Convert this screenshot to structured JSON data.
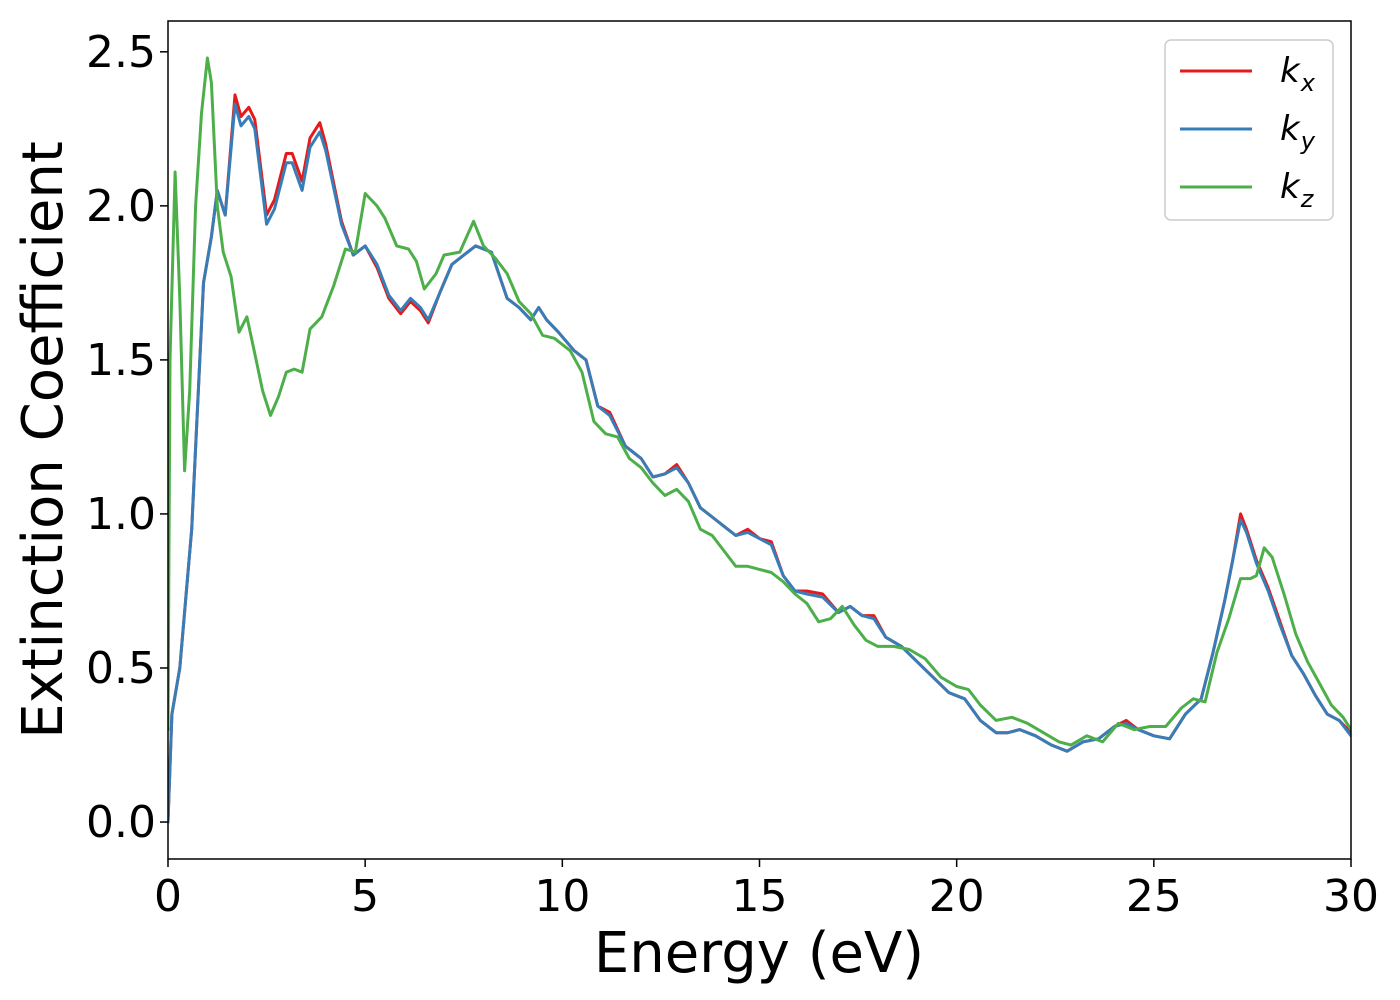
{
  "chart_data": {
    "type": "line",
    "title": "",
    "xlabel": "Energy (eV)",
    "ylabel": "Extinction Coefficient",
    "xlim": [
      0,
      30
    ],
    "ylim": [
      -0.12,
      2.6
    ],
    "x_ticks": [
      0,
      5,
      10,
      15,
      20,
      25,
      30
    ],
    "x_tick_labels": [
      "0",
      "5",
      "10",
      "15",
      "20",
      "25",
      "30"
    ],
    "y_ticks": [
      0.0,
      0.5,
      1.0,
      1.5,
      2.0,
      2.5
    ],
    "y_tick_labels": [
      "0.0",
      "0.5",
      "1.0",
      "1.5",
      "2.0",
      "2.5"
    ],
    "grid": false,
    "legend_position": "top-right",
    "series": [
      {
        "name": "k_x",
        "label_base": "k",
        "label_sub": "x",
        "color": "#e41a1c",
        "points": [
          [
            0,
            0
          ],
          [
            0.1,
            0.35
          ],
          [
            0.3,
            0.5
          ],
          [
            0.6,
            0.95
          ],
          [
            0.9,
            1.75
          ],
          [
            1.1,
            1.9
          ],
          [
            1.25,
            2.05
          ],
          [
            1.45,
            1.97
          ],
          [
            1.7,
            2.36
          ],
          [
            1.85,
            2.29
          ],
          [
            2.05,
            2.32
          ],
          [
            2.2,
            2.28
          ],
          [
            2.5,
            1.97
          ],
          [
            2.7,
            2.02
          ],
          [
            3.0,
            2.17
          ],
          [
            3.15,
            2.17
          ],
          [
            3.4,
            2.08
          ],
          [
            3.6,
            2.22
          ],
          [
            3.85,
            2.27
          ],
          [
            4.0,
            2.2
          ],
          [
            4.4,
            1.95
          ],
          [
            4.7,
            1.84
          ],
          [
            5.0,
            1.87
          ],
          [
            5.3,
            1.8
          ],
          [
            5.6,
            1.7
          ],
          [
            5.9,
            1.65
          ],
          [
            6.15,
            1.69
          ],
          [
            6.4,
            1.66
          ],
          [
            6.6,
            1.62
          ],
          [
            6.9,
            1.72
          ],
          [
            7.2,
            1.81
          ],
          [
            7.5,
            1.84
          ],
          [
            7.8,
            1.87
          ],
          [
            8.2,
            1.85
          ],
          [
            8.6,
            1.7
          ],
          [
            8.9,
            1.67
          ],
          [
            9.2,
            1.63
          ],
          [
            9.4,
            1.67
          ],
          [
            9.6,
            1.63
          ],
          [
            9.9,
            1.59
          ],
          [
            10.3,
            1.53
          ],
          [
            10.6,
            1.5
          ],
          [
            10.9,
            1.35
          ],
          [
            11.2,
            1.33
          ],
          [
            11.6,
            1.22
          ],
          [
            12.0,
            1.18
          ],
          [
            12.3,
            1.12
          ],
          [
            12.6,
            1.13
          ],
          [
            12.9,
            1.16
          ],
          [
            13.2,
            1.1
          ],
          [
            13.5,
            1.02
          ],
          [
            13.8,
            0.99
          ],
          [
            14.1,
            0.96
          ],
          [
            14.4,
            0.93
          ],
          [
            14.7,
            0.95
          ],
          [
            15.0,
            0.92
          ],
          [
            15.3,
            0.91
          ],
          [
            15.6,
            0.8
          ],
          [
            15.9,
            0.75
          ],
          [
            16.2,
            0.75
          ],
          [
            16.6,
            0.74
          ],
          [
            17.0,
            0.68
          ],
          [
            17.3,
            0.7
          ],
          [
            17.6,
            0.67
          ],
          [
            17.9,
            0.67
          ],
          [
            18.2,
            0.6
          ],
          [
            18.6,
            0.57
          ],
          [
            19.0,
            0.52
          ],
          [
            19.4,
            0.47
          ],
          [
            19.8,
            0.42
          ],
          [
            20.2,
            0.4
          ],
          [
            20.6,
            0.33
          ],
          [
            21.0,
            0.29
          ],
          [
            21.3,
            0.29
          ],
          [
            21.6,
            0.3
          ],
          [
            22.0,
            0.28
          ],
          [
            22.4,
            0.25
          ],
          [
            22.8,
            0.23
          ],
          [
            23.2,
            0.26
          ],
          [
            23.6,
            0.27
          ],
          [
            24.0,
            0.31
          ],
          [
            24.3,
            0.33
          ],
          [
            24.6,
            0.3
          ],
          [
            25.0,
            0.28
          ],
          [
            25.4,
            0.27
          ],
          [
            25.8,
            0.35
          ],
          [
            26.2,
            0.4
          ],
          [
            26.5,
            0.55
          ],
          [
            26.8,
            0.72
          ],
          [
            27.0,
            0.85
          ],
          [
            27.2,
            1.0
          ],
          [
            27.35,
            0.95
          ],
          [
            27.6,
            0.85
          ],
          [
            27.9,
            0.76
          ],
          [
            28.2,
            0.65
          ],
          [
            28.5,
            0.54
          ],
          [
            28.8,
            0.48
          ],
          [
            29.1,
            0.41
          ],
          [
            29.4,
            0.35
          ],
          [
            29.7,
            0.33
          ],
          [
            30.0,
            0.29
          ]
        ]
      },
      {
        "name": "k_y",
        "label_base": "k",
        "label_sub": "y",
        "color": "#377eb8",
        "points": [
          [
            0,
            0
          ],
          [
            0.1,
            0.35
          ],
          [
            0.3,
            0.5
          ],
          [
            0.6,
            0.95
          ],
          [
            0.9,
            1.75
          ],
          [
            1.1,
            1.9
          ],
          [
            1.25,
            2.05
          ],
          [
            1.45,
            1.97
          ],
          [
            1.7,
            2.33
          ],
          [
            1.85,
            2.26
          ],
          [
            2.05,
            2.29
          ],
          [
            2.2,
            2.25
          ],
          [
            2.5,
            1.94
          ],
          [
            2.7,
            1.99
          ],
          [
            3.0,
            2.14
          ],
          [
            3.15,
            2.14
          ],
          [
            3.4,
            2.05
          ],
          [
            3.6,
            2.19
          ],
          [
            3.85,
            2.24
          ],
          [
            4.0,
            2.18
          ],
          [
            4.4,
            1.94
          ],
          [
            4.7,
            1.84
          ],
          [
            5.0,
            1.87
          ],
          [
            5.3,
            1.81
          ],
          [
            5.6,
            1.71
          ],
          [
            5.9,
            1.66
          ],
          [
            6.15,
            1.7
          ],
          [
            6.4,
            1.67
          ],
          [
            6.6,
            1.63
          ],
          [
            6.9,
            1.72
          ],
          [
            7.2,
            1.81
          ],
          [
            7.5,
            1.84
          ],
          [
            7.8,
            1.87
          ],
          [
            8.2,
            1.85
          ],
          [
            8.6,
            1.7
          ],
          [
            8.9,
            1.67
          ],
          [
            9.2,
            1.63
          ],
          [
            9.4,
            1.67
          ],
          [
            9.6,
            1.63
          ],
          [
            9.9,
            1.59
          ],
          [
            10.3,
            1.53
          ],
          [
            10.6,
            1.5
          ],
          [
            10.9,
            1.35
          ],
          [
            11.2,
            1.32
          ],
          [
            11.6,
            1.22
          ],
          [
            12.0,
            1.18
          ],
          [
            12.3,
            1.12
          ],
          [
            12.6,
            1.13
          ],
          [
            12.9,
            1.15
          ],
          [
            13.2,
            1.1
          ],
          [
            13.5,
            1.02
          ],
          [
            13.8,
            0.99
          ],
          [
            14.1,
            0.96
          ],
          [
            14.4,
            0.93
          ],
          [
            14.7,
            0.94
          ],
          [
            15.0,
            0.92
          ],
          [
            15.3,
            0.9
          ],
          [
            15.6,
            0.8
          ],
          [
            15.9,
            0.75
          ],
          [
            16.2,
            0.74
          ],
          [
            16.6,
            0.73
          ],
          [
            17.0,
            0.68
          ],
          [
            17.3,
            0.7
          ],
          [
            17.6,
            0.67
          ],
          [
            17.9,
            0.66
          ],
          [
            18.2,
            0.6
          ],
          [
            18.6,
            0.57
          ],
          [
            19.0,
            0.52
          ],
          [
            19.4,
            0.47
          ],
          [
            19.8,
            0.42
          ],
          [
            20.2,
            0.4
          ],
          [
            20.6,
            0.33
          ],
          [
            21.0,
            0.29
          ],
          [
            21.3,
            0.29
          ],
          [
            21.6,
            0.3
          ],
          [
            22.0,
            0.28
          ],
          [
            22.4,
            0.25
          ],
          [
            22.8,
            0.23
          ],
          [
            23.2,
            0.26
          ],
          [
            23.6,
            0.27
          ],
          [
            24.0,
            0.31
          ],
          [
            24.3,
            0.32
          ],
          [
            24.6,
            0.3
          ],
          [
            25.0,
            0.28
          ],
          [
            25.4,
            0.27
          ],
          [
            25.8,
            0.35
          ],
          [
            26.2,
            0.4
          ],
          [
            26.5,
            0.55
          ],
          [
            26.8,
            0.72
          ],
          [
            27.0,
            0.85
          ],
          [
            27.2,
            0.98
          ],
          [
            27.35,
            0.94
          ],
          [
            27.6,
            0.84
          ],
          [
            27.9,
            0.75
          ],
          [
            28.2,
            0.64
          ],
          [
            28.5,
            0.54
          ],
          [
            28.8,
            0.48
          ],
          [
            29.1,
            0.41
          ],
          [
            29.4,
            0.35
          ],
          [
            29.7,
            0.33
          ],
          [
            30.0,
            0.28
          ]
        ]
      },
      {
        "name": "k_z",
        "label_base": "k",
        "label_sub": "z",
        "color": "#4daf4a",
        "points": [
          [
            0,
            0.3
          ],
          [
            0.05,
            1.5
          ],
          [
            0.18,
            2.11
          ],
          [
            0.3,
            1.7
          ],
          [
            0.42,
            1.14
          ],
          [
            0.55,
            1.4
          ],
          [
            0.7,
            2.0
          ],
          [
            0.85,
            2.3
          ],
          [
            1.0,
            2.48
          ],
          [
            1.1,
            2.4
          ],
          [
            1.25,
            2.0
          ],
          [
            1.4,
            1.85
          ],
          [
            1.6,
            1.77
          ],
          [
            1.8,
            1.59
          ],
          [
            2.0,
            1.64
          ],
          [
            2.2,
            1.52
          ],
          [
            2.4,
            1.4
          ],
          [
            2.6,
            1.32
          ],
          [
            2.8,
            1.38
          ],
          [
            3.0,
            1.46
          ],
          [
            3.2,
            1.47
          ],
          [
            3.4,
            1.46
          ],
          [
            3.6,
            1.6
          ],
          [
            3.9,
            1.64
          ],
          [
            4.2,
            1.74
          ],
          [
            4.5,
            1.86
          ],
          [
            4.75,
            1.85
          ],
          [
            5.0,
            2.04
          ],
          [
            5.3,
            2.0
          ],
          [
            5.5,
            1.96
          ],
          [
            5.8,
            1.87
          ],
          [
            6.1,
            1.86
          ],
          [
            6.3,
            1.82
          ],
          [
            6.5,
            1.73
          ],
          [
            6.8,
            1.78
          ],
          [
            7.0,
            1.84
          ],
          [
            7.4,
            1.85
          ],
          [
            7.75,
            1.95
          ],
          [
            8.0,
            1.87
          ],
          [
            8.3,
            1.83
          ],
          [
            8.6,
            1.78
          ],
          [
            8.9,
            1.69
          ],
          [
            9.2,
            1.65
          ],
          [
            9.5,
            1.58
          ],
          [
            9.8,
            1.57
          ],
          [
            10.2,
            1.53
          ],
          [
            10.5,
            1.46
          ],
          [
            10.8,
            1.3
          ],
          [
            11.1,
            1.26
          ],
          [
            11.4,
            1.25
          ],
          [
            11.7,
            1.18
          ],
          [
            12.0,
            1.15
          ],
          [
            12.3,
            1.1
          ],
          [
            12.6,
            1.06
          ],
          [
            12.9,
            1.08
          ],
          [
            13.2,
            1.04
          ],
          [
            13.5,
            0.95
          ],
          [
            13.8,
            0.93
          ],
          [
            14.1,
            0.88
          ],
          [
            14.4,
            0.83
          ],
          [
            14.7,
            0.83
          ],
          [
            15.0,
            0.82
          ],
          [
            15.3,
            0.81
          ],
          [
            15.6,
            0.78
          ],
          [
            15.9,
            0.74
          ],
          [
            16.2,
            0.71
          ],
          [
            16.5,
            0.65
          ],
          [
            16.8,
            0.66
          ],
          [
            17.1,
            0.7
          ],
          [
            17.4,
            0.64
          ],
          [
            17.7,
            0.59
          ],
          [
            18.0,
            0.57
          ],
          [
            18.4,
            0.57
          ],
          [
            18.8,
            0.56
          ],
          [
            19.2,
            0.53
          ],
          [
            19.6,
            0.47
          ],
          [
            20.0,
            0.44
          ],
          [
            20.3,
            0.43
          ],
          [
            20.6,
            0.38
          ],
          [
            21.0,
            0.33
          ],
          [
            21.4,
            0.34
          ],
          [
            21.8,
            0.32
          ],
          [
            22.2,
            0.29
          ],
          [
            22.6,
            0.26
          ],
          [
            22.9,
            0.25
          ],
          [
            23.3,
            0.28
          ],
          [
            23.7,
            0.26
          ],
          [
            24.1,
            0.32
          ],
          [
            24.5,
            0.3
          ],
          [
            24.9,
            0.31
          ],
          [
            25.3,
            0.31
          ],
          [
            25.7,
            0.37
          ],
          [
            26.0,
            0.4
          ],
          [
            26.3,
            0.39
          ],
          [
            26.6,
            0.55
          ],
          [
            26.9,
            0.66
          ],
          [
            27.2,
            0.79
          ],
          [
            27.45,
            0.79
          ],
          [
            27.6,
            0.8
          ],
          [
            27.8,
            0.89
          ],
          [
            28.0,
            0.86
          ],
          [
            28.3,
            0.74
          ],
          [
            28.6,
            0.61
          ],
          [
            28.9,
            0.52
          ],
          [
            29.2,
            0.45
          ],
          [
            29.5,
            0.38
          ],
          [
            29.8,
            0.34
          ],
          [
            30.0,
            0.3
          ]
        ]
      }
    ]
  }
}
